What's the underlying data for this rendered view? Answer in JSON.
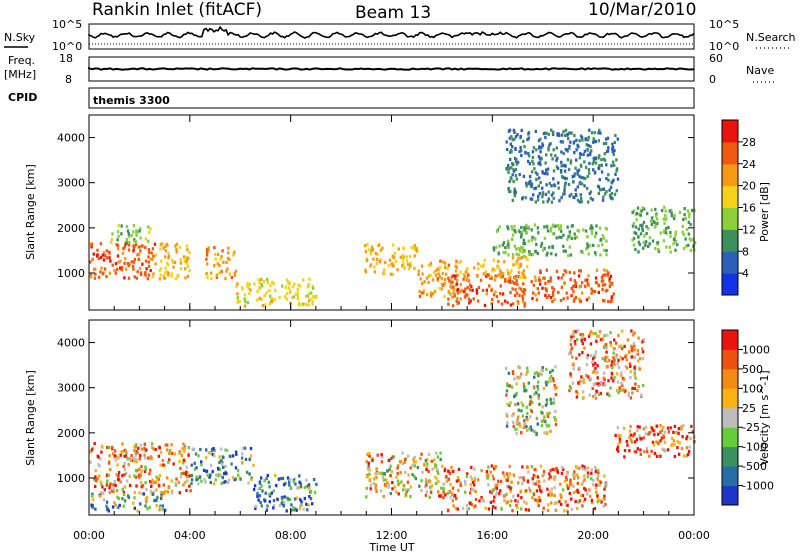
{
  "header": {
    "station": "Rankin Inlet (fitACF)",
    "beam": "Beam 13",
    "date": "10/Mar/2010"
  },
  "noise_panel": {
    "left_label": "N.Sky",
    "left_tick_top": "10^5",
    "left_tick_bottom": "10^0",
    "right_label": "N.Search",
    "right_tick_top": "10^5",
    "right_tick_bottom": "10^0"
  },
  "freq_panel": {
    "left_label_line1": "Freq.",
    "left_label_line2": "[MHz]",
    "left_tick_top": "18",
    "left_tick_bottom": "8",
    "right_label": "Nave",
    "right_tick_top": "60",
    "right_tick_bottom": "0"
  },
  "cpid_panel": {
    "label": "CPID",
    "value": "themis 3300"
  },
  "chart_data": [
    {
      "type": "heatmap",
      "name": "power",
      "ylabel": "Slant Range [km]",
      "yticks": [
        "1000",
        "2000",
        "3000",
        "4000"
      ],
      "ytick_values": [
        1000,
        2000,
        3000,
        4000
      ],
      "ylim": [
        180,
        4500
      ],
      "xlim_hours": [
        0,
        24
      ],
      "colorbar": {
        "title": "Power [dB]",
        "ticks": [
          "4",
          "8",
          "12",
          "16",
          "20",
          "24",
          "28"
        ],
        "range": [
          0,
          32
        ],
        "colors": [
          "#1433e6",
          "#2b5fb8",
          "#3d8f5c",
          "#8ccf3a",
          "#f5d21a",
          "#f59a14",
          "#ee5a10",
          "#e8140e"
        ]
      },
      "bands": [
        {
          "t0": 0.0,
          "t1": 2.6,
          "r0": 900,
          "r1": 1700,
          "v": 26
        },
        {
          "t0": 0.8,
          "t1": 2.4,
          "r0": 1700,
          "r1": 2100,
          "v": 14
        },
        {
          "t0": 2.4,
          "t1": 4.0,
          "r0": 900,
          "r1": 1700,
          "v": 20
        },
        {
          "t0": 4.6,
          "t1": 5.8,
          "r0": 900,
          "r1": 1600,
          "v": 22
        },
        {
          "t0": 5.8,
          "t1": 9.0,
          "r0": 300,
          "r1": 900,
          "v": 18
        },
        {
          "t0": 10.9,
          "t1": 13.0,
          "r0": 1000,
          "r1": 1700,
          "v": 20
        },
        {
          "t0": 13.0,
          "t1": 15.0,
          "r0": 500,
          "r1": 1300,
          "v": 22
        },
        {
          "t0": 14.2,
          "t1": 17.3,
          "r0": 300,
          "r1": 1000,
          "v": 26
        },
        {
          "t0": 15.2,
          "t1": 17.4,
          "r0": 900,
          "r1": 1400,
          "v": 20
        },
        {
          "t0": 17.5,
          "t1": 20.8,
          "r0": 400,
          "r1": 1100,
          "v": 26
        },
        {
          "t0": 16.0,
          "t1": 20.5,
          "r0": 1400,
          "r1": 2100,
          "v": 12
        },
        {
          "t0": 21.5,
          "t1": 24.0,
          "r0": 1500,
          "r1": 2500,
          "v": 12
        },
        {
          "t0": 16.5,
          "t1": 21.0,
          "r0": 2600,
          "r1": 4200,
          "v": 8
        }
      ]
    },
    {
      "type": "heatmap",
      "name": "velocity",
      "ylabel": "Slant Range [km]",
      "yticks": [
        "1000",
        "2000",
        "3000",
        "4000"
      ],
      "ytick_values": [
        1000,
        2000,
        3000,
        4000
      ],
      "ylim": [
        180,
        4500
      ],
      "xlim_hours": [
        0,
        24
      ],
      "colorbar": {
        "title": "Velocity [m s^-1]",
        "ticks": [
          "1000",
          "500",
          "100",
          "25",
          "-25",
          "-100",
          "-500",
          "-1000"
        ],
        "colors": [
          "#2036c8",
          "#276ea6",
          "#3c8f60",
          "#66cc3a",
          "#bdbdbd",
          "#f7b214",
          "#f58a14",
          "#ee5010",
          "#e8140e"
        ]
      },
      "bands": [
        {
          "t0": 0.0,
          "t1": 4.0,
          "r0": 700,
          "r1": 1800,
          "v": 6
        },
        {
          "t0": 0.0,
          "t1": 3.0,
          "r0": 300,
          "r1": 700,
          "v": 3
        },
        {
          "t0": 4.0,
          "t1": 6.5,
          "r0": 900,
          "r1": 1700,
          "v": 2
        },
        {
          "t0": 6.5,
          "t1": 9.0,
          "r0": 300,
          "r1": 1100,
          "v": 2
        },
        {
          "t0": 10.9,
          "t1": 14.0,
          "r0": 600,
          "r1": 1600,
          "v": 5
        },
        {
          "t0": 14.0,
          "t1": 20.5,
          "r0": 300,
          "r1": 1300,
          "v": 6
        },
        {
          "t0": 16.5,
          "t1": 18.5,
          "r0": 2000,
          "r1": 3500,
          "v": 4
        },
        {
          "t0": 20.8,
          "t1": 24.0,
          "r0": 1500,
          "r1": 2200,
          "v": 7
        },
        {
          "t0": 19.0,
          "t1": 22.0,
          "r0": 2800,
          "r1": 4300,
          "v": 6
        }
      ]
    }
  ],
  "x_axis": {
    "label": "Time UT",
    "ticks": [
      "00:00",
      "04:00",
      "08:00",
      "12:00",
      "16:00",
      "20:00",
      "00:00"
    ],
    "tick_hours": [
      0,
      4,
      8,
      12,
      16,
      20,
      24
    ]
  }
}
